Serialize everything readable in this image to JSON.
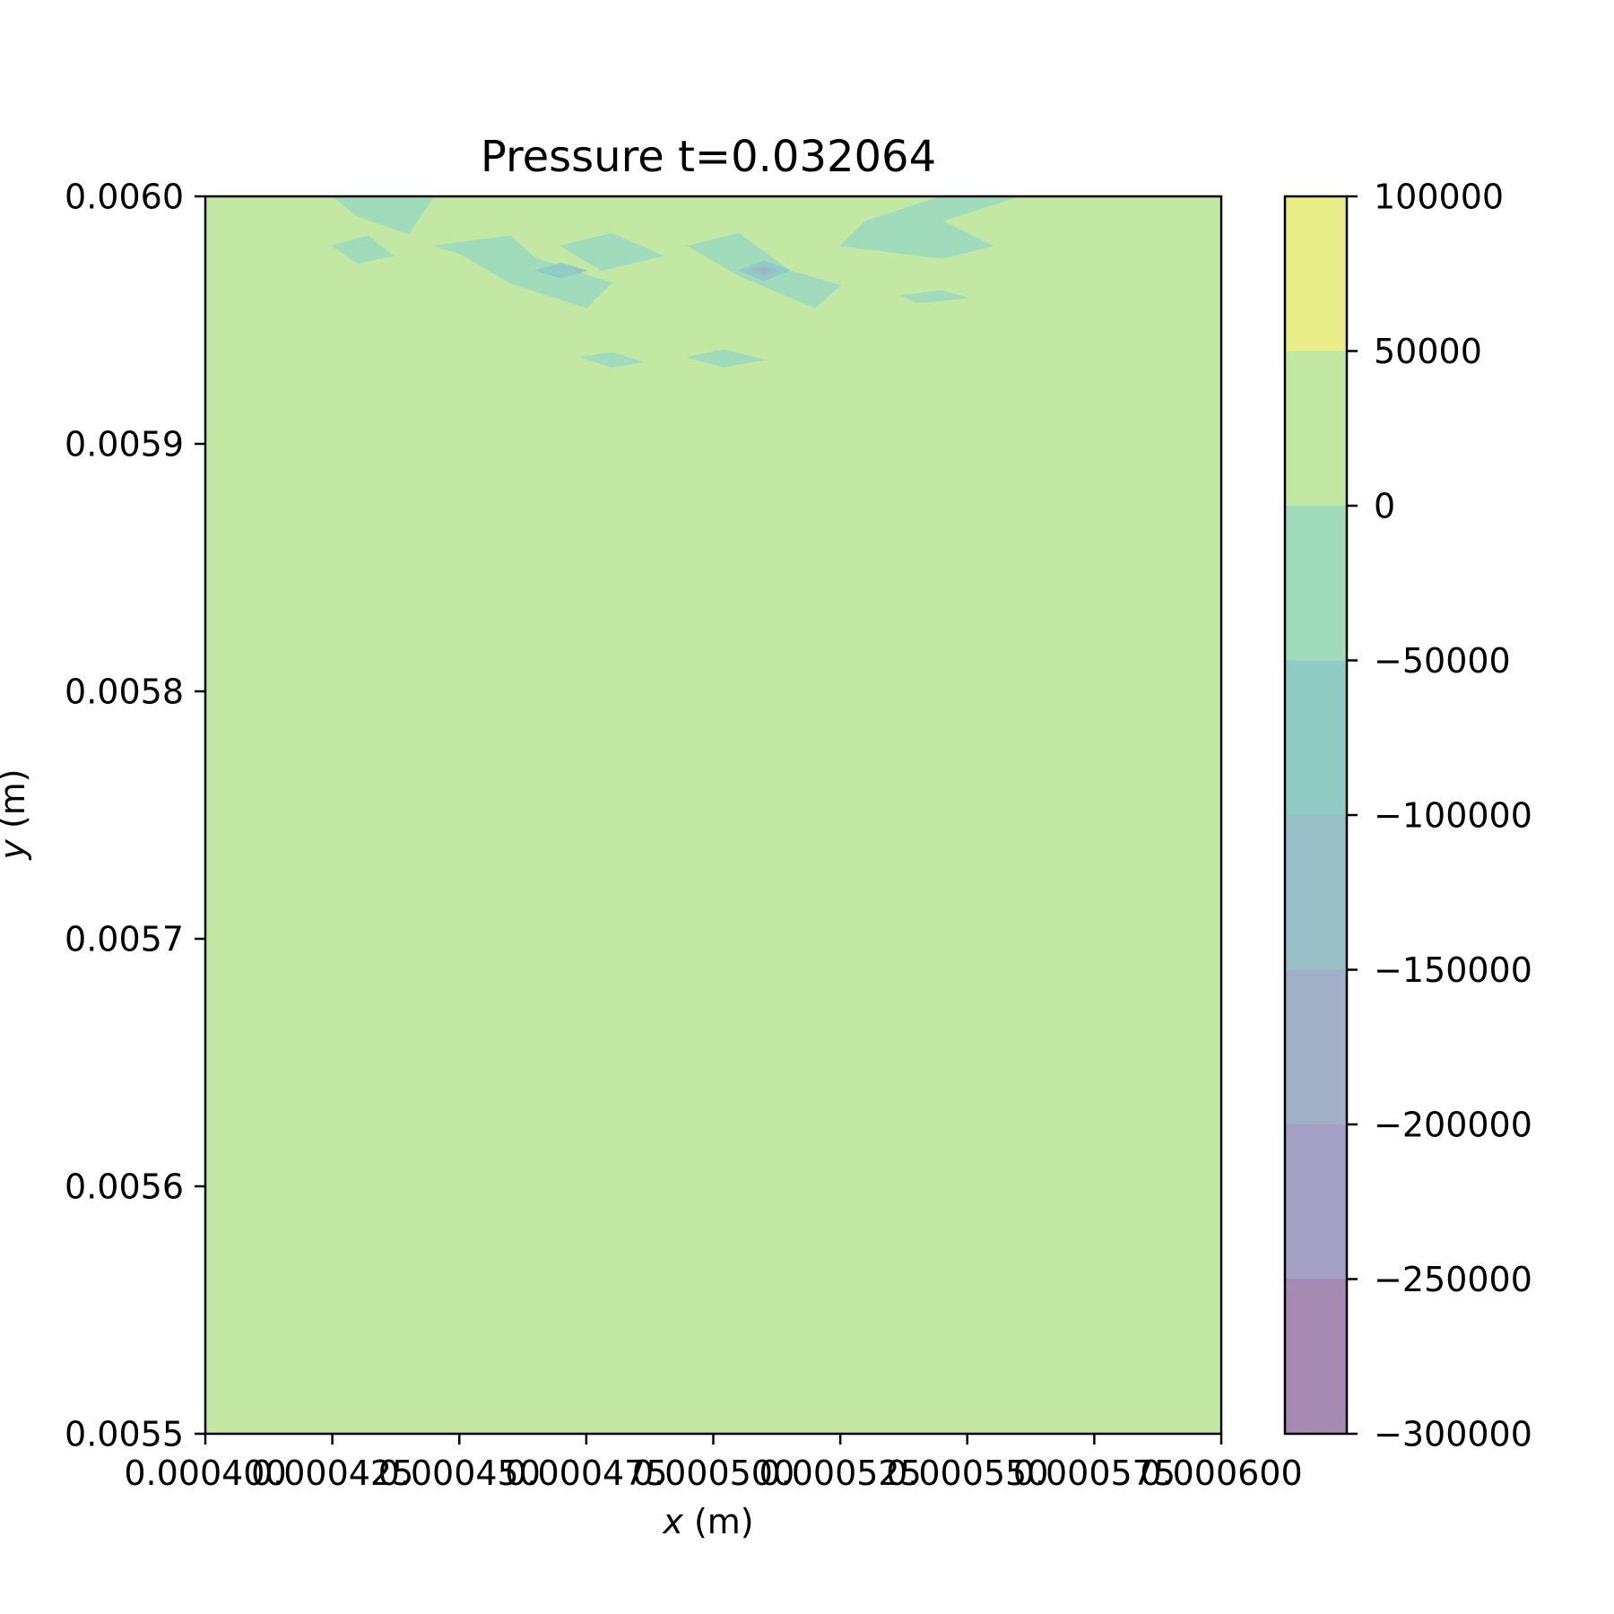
{
  "chart_data": {
    "type": "heatmap",
    "subtype": "filled-contour",
    "title": "Pressure t=0.032064",
    "xlabel_var": "x",
    "xlabel_unit": " (m)",
    "ylabel_var": "y",
    "ylabel_unit": " (m)",
    "xlim": [
      0.0004,
      0.0006
    ],
    "ylim": [
      0.0055,
      0.006
    ],
    "x_ticks": [
      0.0004,
      0.000425,
      0.00045,
      0.000475,
      0.0005,
      0.000525,
      0.00055,
      0.000575,
      0.0006
    ],
    "x_tick_labels": [
      "0.000400",
      "0.000425",
      "0.000450",
      "0.000475",
      "0.000500",
      "0.000525",
      "0.000550",
      "0.000575",
      "0.000600"
    ],
    "y_ticks": [
      0.0055,
      0.0056,
      0.0057,
      0.0058,
      0.0059,
      0.006
    ],
    "y_tick_labels": [
      "0.0055",
      "0.0056",
      "0.0057",
      "0.0058",
      "0.0059",
      "0.0060"
    ],
    "colorbar": {
      "levels": [
        -300000,
        -250000,
        -200000,
        -150000,
        -100000,
        -50000,
        0,
        50000,
        100000
      ],
      "tick_values": [
        100000,
        50000,
        0,
        -50000,
        -100000,
        -150000,
        -200000,
        -250000,
        -300000
      ],
      "tick_labels": [
        "100000",
        "50000",
        "0",
        "−50000",
        "−100000",
        "−150000",
        "−200000",
        "−250000",
        "−300000"
      ],
      "band_colors": [
        "#a58bb2",
        "#a4a1c4",
        "#9fb0c7",
        "#98bfc6",
        "#90ccc3",
        "#a0dcbb",
        "#c3e8a3",
        "#e9ed88"
      ]
    },
    "background_level_range": [
      0,
      50000
    ],
    "regions": [
      {
        "level": "-50000 to 0",
        "polygon": [
          [
            0.000425,
            0.006
          ],
          [
            0.000445,
            0.006
          ],
          [
            0.00044,
            0.005985
          ],
          [
            0.00043,
            0.005992
          ]
        ]
      },
      {
        "level": "-50000 to 0",
        "polygon": [
          [
            0.000425,
            0.00598
          ],
          [
            0.000432,
            0.005984
          ],
          [
            0.000437,
            0.005976
          ],
          [
            0.00043,
            0.005973
          ]
        ]
      },
      {
        "level": "-50000 to 0",
        "polygon": [
          [
            0.000445,
            0.00598
          ],
          [
            0.00046,
            0.005984
          ],
          [
            0.000465,
            0.005975
          ],
          [
            0.00048,
            0.005965
          ],
          [
            0.000475,
            0.005955
          ],
          [
            0.00046,
            0.005965
          ],
          [
            0.00045,
            0.005977
          ]
        ]
      },
      {
        "level": "-50000 to 0",
        "polygon": [
          [
            0.00047,
            0.00598
          ],
          [
            0.00048,
            0.005985
          ],
          [
            0.00049,
            0.005976
          ],
          [
            0.000478,
            0.00597
          ]
        ]
      },
      {
        "level": "-50000 to 0",
        "polygon": [
          [
            0.000495,
            0.00598
          ],
          [
            0.000505,
            0.005985
          ],
          [
            0.000515,
            0.00597
          ],
          [
            0.000525,
            0.005964
          ],
          [
            0.00052,
            0.005955
          ],
          [
            0.000505,
            0.005968
          ]
        ]
      },
      {
        "level": "-50000 to 0",
        "polygon": [
          [
            0.000525,
            0.00598
          ],
          [
            0.00053,
            0.00599
          ],
          [
            0.000545,
            0.006
          ],
          [
            0.00056,
            0.006
          ],
          [
            0.000545,
            0.00599
          ],
          [
            0.000555,
            0.00598
          ],
          [
            0.000545,
            0.005975
          ]
        ]
      },
      {
        "level": "-50000 to 0",
        "polygon": [
          [
            0.000474,
            0.005935
          ],
          [
            0.00048,
            0.005937
          ],
          [
            0.000486,
            0.005933
          ],
          [
            0.00048,
            0.005931
          ]
        ]
      },
      {
        "level": "-50000 to 0",
        "polygon": [
          [
            0.000495,
            0.005935
          ],
          [
            0.000502,
            0.005938
          ],
          [
            0.00051,
            0.005934
          ],
          [
            0.000502,
            0.005931
          ]
        ]
      },
      {
        "level": "-50000 to 0",
        "polygon": [
          [
            0.000537,
            0.00596
          ],
          [
            0.000545,
            0.005962
          ],
          [
            0.00055,
            0.005959
          ],
          [
            0.00054,
            0.005957
          ]
        ]
      },
      {
        "level": "-100000 to -50000",
        "polygon": [
          [
            0.000465,
            0.00597
          ],
          [
            0.00047,
            0.005973
          ],
          [
            0.000475,
            0.00597
          ],
          [
            0.00047,
            0.005967
          ]
        ]
      },
      {
        "level": "-100000 to -50000",
        "polygon": [
          [
            0.000505,
            0.00597
          ],
          [
            0.00051,
            0.005974
          ],
          [
            0.000515,
            0.00597
          ],
          [
            0.00051,
            0.005966
          ]
        ]
      },
      {
        "level": "-150000 to -100000",
        "polygon": [
          [
            0.000507,
            0.00597
          ],
          [
            0.00051,
            0.005972
          ],
          [
            0.000513,
            0.00597
          ],
          [
            0.00051,
            0.005968
          ]
        ]
      },
      {
        "level": "-200000 to -150000",
        "polygon": [
          [
            0.000509,
            0.00597
          ],
          [
            0.00051,
            0.005971
          ],
          [
            0.000511,
            0.00597
          ],
          [
            0.00051,
            0.005969
          ]
        ]
      }
    ]
  }
}
